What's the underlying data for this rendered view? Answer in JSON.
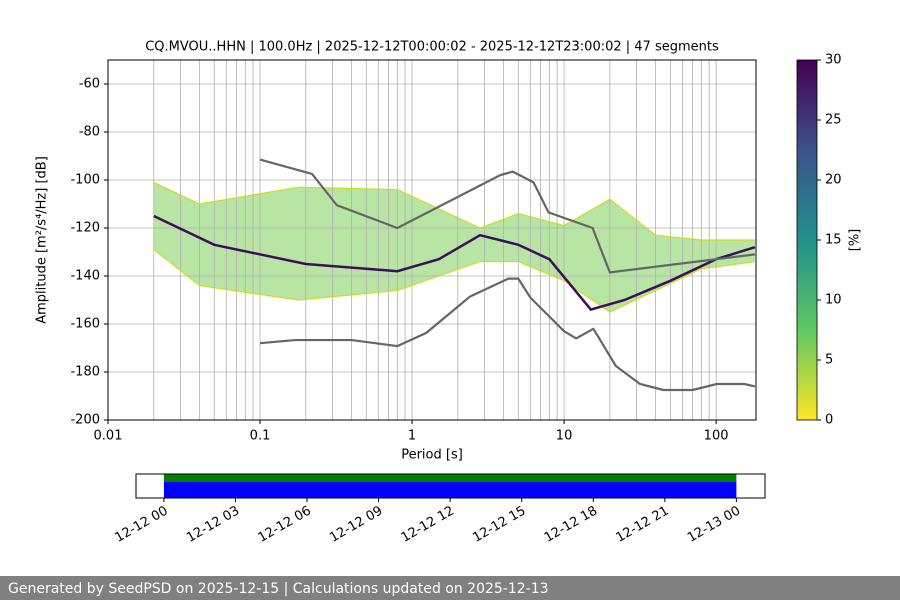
{
  "chart_data": [
    {
      "type": "ppsd",
      "title": "CQ.MVOU..HHN | 100.0Hz | 2025-12-12T00:00:02 - 2025-12-12T23:00:02 | 47 segments",
      "xlabel": "Period [s]",
      "ylabel": "Amplitude [m²/s⁴/Hz] [dB]",
      "log_x": true,
      "grid": true,
      "xlim": [
        0.01,
        183
      ],
      "ylim": [
        -200,
        -50
      ],
      "xticks": [
        0.01,
        0.1,
        1,
        10,
        100
      ],
      "yticks": [
        -200,
        -180,
        -160,
        -140,
        -120,
        -100,
        -80,
        -60
      ],
      "series": [
        {
          "color": "#c8e020",
          "x": [
            0.02,
            0.04,
            0.18,
            0.8,
            2.8,
            5,
            10,
            20,
            40,
            80,
            180
          ],
          "values": [
            -101,
            -110,
            -103,
            -104,
            -120,
            -114,
            -119,
            -108,
            -123,
            -125,
            -125
          ]
        },
        {
          "color": "#c8e020",
          "x": [
            0.02,
            0.04,
            0.18,
            0.8,
            2.8,
            5,
            10,
            20,
            40,
            80,
            180
          ],
          "values": [
            -129,
            -144,
            -150,
            -146,
            -134,
            -134,
            -142,
            -155,
            -146,
            -137,
            -134
          ]
        },
        {
          "color": "#3b0f5a",
          "x": [
            0.02,
            0.05,
            0.2,
            0.8,
            1.5,
            2.8,
            5,
            8,
            15,
            25,
            50,
            100,
            180
          ],
          "values": [
            -115,
            -127,
            -135,
            -138,
            -133,
            -123,
            -127,
            -133,
            -154,
            -150,
            -142,
            -133,
            -128
          ]
        },
        {
          "color": "#666666",
          "x": [
            0.1,
            0.22,
            0.32,
            0.8,
            3.8,
            4.6,
            6.3,
            7.9,
            15.4,
            20,
            180
          ],
          "values": [
            -91.5,
            -97.5,
            -110.5,
            -120,
            -98,
            -96.5,
            -101,
            -113.5,
            -120,
            -138.5,
            -131
          ]
        },
        {
          "color": "#666666",
          "x": [
            0.1,
            0.17,
            0.4,
            0.8,
            1.24,
            2.4,
            4.3,
            5,
            6,
            10,
            12,
            15.6,
            21.9,
            31.6,
            45,
            70,
            101,
            154,
            180
          ],
          "values": [
            -168,
            -166.7,
            -166.7,
            -169.2,
            -163.7,
            -148.6,
            -141.1,
            -141.1,
            -149,
            -163,
            -166,
            -162,
            -177.5,
            -185,
            -187.5,
            -187.5,
            -185,
            -185,
            -186
          ]
        }
      ],
      "colorbar": {
        "label": "[%]",
        "ylim": [
          0,
          30
        ],
        "yticks": [
          0,
          5,
          10,
          15,
          20,
          25,
          30
        ],
        "colors": [
          "#fde725",
          "#5ec962",
          "#21918c",
          "#3b528b",
          "#440154"
        ]
      }
    },
    {
      "type": "timeline",
      "xlim": [
        -1.17,
        25.2
      ],
      "xticks": [
        {
          "value": 0,
          "label": "12-12 00"
        },
        {
          "value": 3,
          "label": "12-12 03"
        },
        {
          "value": 6,
          "label": "12-12 06"
        },
        {
          "value": 9,
          "label": "12-12 09"
        },
        {
          "value": 12,
          "label": "12-12 12"
        },
        {
          "value": 15,
          "label": "12-12 15"
        },
        {
          "value": 18,
          "label": "12-12 18"
        },
        {
          "value": 21,
          "label": "12-12 21"
        },
        {
          "value": 24,
          "label": "12-13 00"
        }
      ],
      "segments": [
        {
          "color": "#008000",
          "start": 0,
          "end": 24
        },
        {
          "color": "#0000ff",
          "start": 0,
          "end": 24
        }
      ]
    }
  ],
  "footer": "Generated by SeedPSD on 2025-12-15 | Calculations updated on 2025-12-13"
}
